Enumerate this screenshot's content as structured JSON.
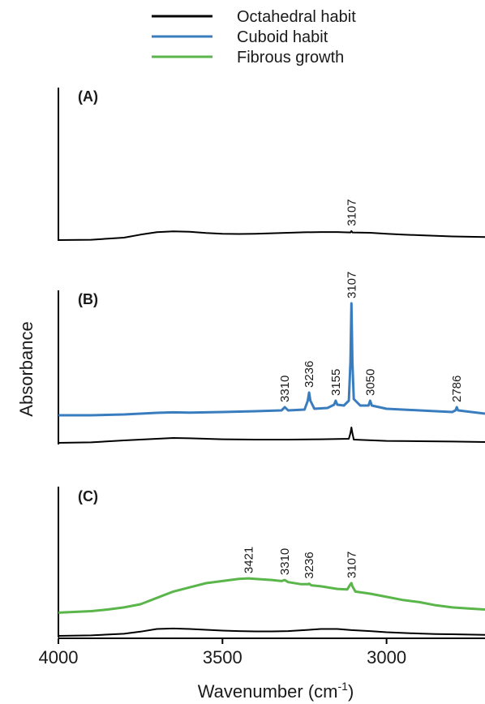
{
  "chart_data": {
    "type": "line",
    "xlabel": "Wavenumber (cm",
    "xlabel_sup": "-1",
    "xlabel_close": ")",
    "ylabel": "Absorbance",
    "x_reversed": true,
    "xlim": [
      4000,
      2700
    ],
    "xticks": [
      4000,
      3500,
      3000
    ],
    "legend": {
      "placement": "top-center",
      "entries": [
        {
          "name": "Octahedral habit",
          "color": "#000000"
        },
        {
          "name": "Cuboid habit",
          "color": "#3a7dbf"
        },
        {
          "name": "Fibrous growth",
          "color": "#5ab54a"
        }
      ]
    },
    "panels": [
      {
        "label": "(A)",
        "ylim": [
          0,
          1
        ],
        "series": [
          {
            "name": "Octahedral habit",
            "color": "#000000",
            "x": [
              4000,
              3900,
              3800,
              3750,
              3700,
              3650,
              3600,
              3550,
              3500,
              3450,
              3400,
              3350,
              3300,
              3250,
              3200,
              3150,
              3110,
              3107,
              3104,
              3050,
              3000,
              2950,
              2900,
              2850,
              2800,
              2750,
              2700
            ],
            "y": [
              0.0,
              0.003,
              0.02,
              0.045,
              0.065,
              0.072,
              0.068,
              0.058,
              0.052,
              0.05,
              0.052,
              0.056,
              0.06,
              0.064,
              0.066,
              0.066,
              0.063,
              0.075,
              0.063,
              0.06,
              0.052,
              0.045,
              0.04,
              0.035,
              0.03,
              0.027,
              0.025
            ]
          }
        ],
        "annotations": [
          {
            "text": "3107",
            "x": 3107
          }
        ]
      },
      {
        "label": "(B)",
        "ylim": [
          0,
          1
        ],
        "series": [
          {
            "name": "Cuboid habit",
            "color": "#3a7dbf",
            "x": [
              4000,
              3900,
              3800,
              3700,
              3650,
              3600,
              3500,
              3400,
              3320,
              3310,
              3300,
              3250,
              3240,
              3236,
              3232,
              3220,
              3180,
              3160,
              3155,
              3150,
              3130,
              3115,
              3110,
              3107,
              3104,
              3100,
              3080,
              3055,
              3050,
              3045,
              3000,
              2900,
              2800,
              2790,
              2786,
              2782,
              2700
            ],
            "y": [
              0.17,
              0.17,
              0.175,
              0.185,
              0.188,
              0.186,
              0.19,
              0.195,
              0.2,
              0.22,
              0.2,
              0.205,
              0.26,
              0.31,
              0.26,
              0.21,
              0.215,
              0.235,
              0.26,
              0.235,
              0.23,
              0.26,
              0.5,
              0.86,
              0.5,
              0.27,
              0.23,
              0.23,
              0.26,
              0.23,
              0.21,
              0.2,
              0.19,
              0.2,
              0.22,
              0.2,
              0.18
            ]
          },
          {
            "name": "Octahedral habit",
            "color": "#000000",
            "x": [
              4000,
              3900,
              3800,
              3700,
              3650,
              3600,
              3500,
              3400,
              3300,
              3200,
              3115,
              3110,
              3107,
              3104,
              3100,
              3000,
              2900,
              2800,
              2700
            ],
            "y": [
              0.0,
              0.003,
              0.015,
              0.025,
              0.03,
              0.028,
              0.022,
              0.02,
              0.02,
              0.022,
              0.025,
              0.06,
              0.095,
              0.06,
              0.02,
              0.012,
              0.01,
              0.008,
              0.005
            ]
          }
        ],
        "annotations": [
          {
            "text": "3310",
            "x": 3310
          },
          {
            "text": "3236",
            "x": 3236
          },
          {
            "text": "3155",
            "x": 3155
          },
          {
            "text": "3107",
            "x": 3107
          },
          {
            "text": "3050",
            "x": 3050
          },
          {
            "text": "2786",
            "x": 2786
          }
        ]
      },
      {
        "label": "(C)",
        "ylim": [
          0,
          1
        ],
        "series": [
          {
            "name": "Fibrous growth",
            "color": "#5ab54a",
            "x": [
              4000,
              3900,
              3850,
              3800,
              3750,
              3700,
              3650,
              3600,
              3550,
              3500,
              3450,
              3421,
              3400,
              3350,
              3320,
              3310,
              3300,
              3260,
              3240,
              3236,
              3230,
              3200,
              3150,
              3120,
              3110,
              3107,
              3104,
              3095,
              3050,
              3000,
              2950,
              2900,
              2850,
              2800,
              2750,
              2700
            ],
            "y": [
              0.22,
              0.235,
              0.25,
              0.27,
              0.3,
              0.36,
              0.42,
              0.46,
              0.5,
              0.52,
              0.54,
              0.545,
              0.54,
              0.53,
              0.52,
              0.53,
              0.51,
              0.49,
              0.49,
              0.495,
              0.48,
              0.47,
              0.445,
              0.44,
              0.49,
              0.5,
              0.47,
              0.42,
              0.4,
              0.37,
              0.34,
              0.32,
              0.29,
              0.27,
              0.26,
              0.25
            ]
          },
          {
            "name": "Octahedral habit",
            "color": "#000000",
            "x": [
              4000,
              3900,
              3800,
              3750,
              3700,
              3650,
              3600,
              3550,
              3500,
              3450,
              3400,
              3350,
              3300,
              3250,
              3200,
              3150,
              3107,
              3050,
              3000,
              2950,
              2900,
              2850,
              2800,
              2750,
              2700
            ],
            "y": [
              0.0,
              0.005,
              0.02,
              0.04,
              0.065,
              0.07,
              0.065,
              0.058,
              0.05,
              0.045,
              0.042,
              0.042,
              0.045,
              0.055,
              0.065,
              0.065,
              0.055,
              0.045,
              0.035,
              0.028,
              0.022,
              0.018,
              0.015,
              0.012,
              0.01
            ]
          }
        ],
        "annotations": [
          {
            "text": "3421",
            "x": 3421
          },
          {
            "text": "3310",
            "x": 3310
          },
          {
            "text": "3236",
            "x": 3236
          },
          {
            "text": "3107",
            "x": 3107
          }
        ]
      }
    ]
  }
}
